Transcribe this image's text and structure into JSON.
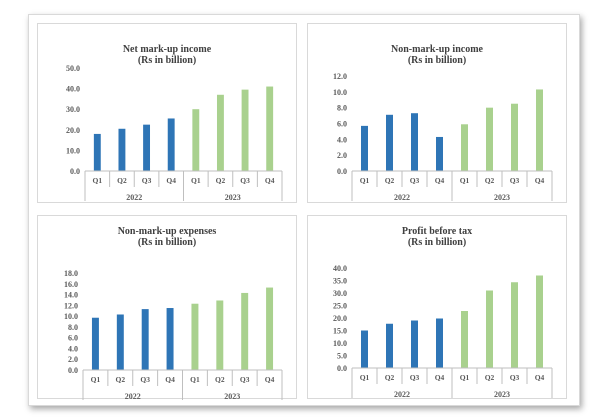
{
  "colors": {
    "year2022": "#2e75b6",
    "year2023": "#a9d18e",
    "axis": "#bfbfbf",
    "text": "#595959"
  },
  "chart_data": [
    {
      "type": "bar",
      "title": "Net mark-up income",
      "subtitle": "(Rs in billion)",
      "categories": [
        "Q1",
        "Q2",
        "Q3",
        "Q4",
        "Q1",
        "Q2",
        "Q3",
        "Q4"
      ],
      "groups": [
        "2022",
        "2023"
      ],
      "values": [
        18.0,
        20.5,
        22.5,
        25.5,
        30.0,
        37.0,
        39.5,
        41.0
      ],
      "ylim": [
        0,
        50
      ],
      "yticks": [
        "0.0",
        "10.0",
        "20.0",
        "30.0",
        "40.0",
        "50.0"
      ],
      "grid": false
    },
    {
      "type": "bar",
      "title": "Non-mark-up income",
      "subtitle": "(Rs in billion)",
      "categories": [
        "Q1",
        "Q2",
        "Q3",
        "Q4",
        "Q1",
        "Q2",
        "Q3",
        "Q4"
      ],
      "groups": [
        "2022",
        "2023"
      ],
      "values": [
        5.7,
        7.1,
        7.3,
        4.3,
        5.9,
        8.0,
        8.5,
        10.3
      ],
      "ylim": [
        0,
        12
      ],
      "yticks": [
        "0.0",
        "2.0",
        "4.0",
        "6.0",
        "8.0",
        "10.0",
        "12.0"
      ],
      "grid": false
    },
    {
      "type": "bar",
      "title": "Non-mark-up expenses",
      "subtitle": "(Rs in billion)",
      "categories": [
        "Q1",
        "Q2",
        "Q3",
        "Q4",
        "Q1",
        "Q2",
        "Q3",
        "Q4"
      ],
      "groups": [
        "2022",
        "2023"
      ],
      "values": [
        9.7,
        10.3,
        11.3,
        11.5,
        12.3,
        12.9,
        14.3,
        15.3
      ],
      "ylim": [
        0,
        18
      ],
      "yticks": [
        "0.0",
        "2.0",
        "4.0",
        "6.0",
        "8.0",
        "10.0",
        "12.0",
        "14.0",
        "16.0",
        "18.0"
      ],
      "grid": false
    },
    {
      "type": "bar",
      "title": "Profit before tax",
      "subtitle": "(Rs in billion)",
      "categories": [
        "Q1",
        "Q2",
        "Q3",
        "Q4",
        "Q1",
        "Q2",
        "Q3",
        "Q4"
      ],
      "groups": [
        "2022",
        "2023"
      ],
      "values": [
        15.0,
        17.7,
        19.0,
        19.8,
        22.8,
        31.0,
        34.3,
        37.0
      ],
      "ylim": [
        0,
        40
      ],
      "yticks": [
        "0.0",
        "5.0",
        "10.0",
        "15.0",
        "20.0",
        "25.0",
        "30.0",
        "35.0",
        "40.0"
      ],
      "grid": false
    }
  ]
}
